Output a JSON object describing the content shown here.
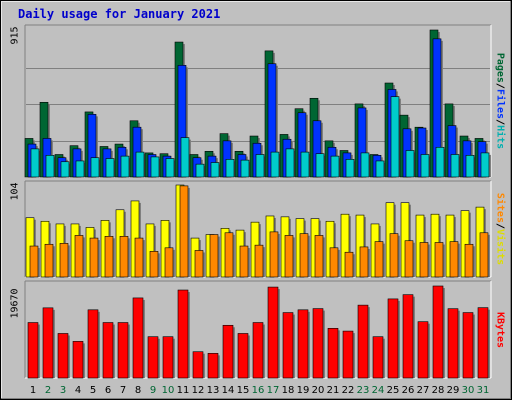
{
  "title": "Daily usage for January 2021",
  "colors": {
    "hits": "#00cccc",
    "files": "#0033ff",
    "pages": "#006633",
    "visits": "#ffff00",
    "sites": "#ff8800",
    "kbytes": "#ff0000",
    "panel_bg": "#c0c0c0",
    "weekend_label": "#006633",
    "weekday_label": "#000000"
  },
  "legend": {
    "pages": "Pages",
    "files": "Files",
    "hits": "Hits",
    "sites": "Sites",
    "visits": "Visits",
    "kbytes": "KBytes",
    "sep": "/"
  },
  "chart_data": [
    {
      "type": "bar",
      "name": "hits-files-pages",
      "max_label": "915",
      "ylim": [
        0,
        915
      ],
      "categories": [
        "1",
        "2",
        "3",
        "4",
        "5",
        "6",
        "7",
        "8",
        "9",
        "10",
        "11",
        "12",
        "13",
        "14",
        "15",
        "16",
        "17",
        "18",
        "19",
        "20",
        "21",
        "22",
        "23",
        "24",
        "25",
        "26",
        "27",
        "28",
        "29",
        "30",
        "31"
      ],
      "weekend": [
        2,
        3,
        9,
        10,
        16,
        17,
        23,
        24,
        30,
        31
      ],
      "series": [
        {
          "name": "Pages",
          "values": [
            240,
            465,
            140,
            195,
            405,
            190,
            205,
            350,
            150,
            145,
            840,
            140,
            160,
            270,
            160,
            255,
            785,
            265,
            425,
            490,
            225,
            165,
            455,
            140,
            585,
            385,
            310,
            915,
            455,
            255,
            240
          ]
        },
        {
          "name": "Files",
          "values": [
            205,
            240,
            120,
            175,
            390,
            175,
            185,
            310,
            140,
            130,
            695,
            120,
            130,
            225,
            140,
            210,
            705,
            235,
            400,
            350,
            185,
            150,
            430,
            135,
            545,
            300,
            305,
            860,
            320,
            225,
            220
          ]
        },
        {
          "name": "Hits",
          "values": [
            175,
            135,
            95,
            100,
            120,
            115,
            130,
            155,
            125,
            115,
            245,
            80,
            90,
            110,
            105,
            140,
            155,
            175,
            155,
            145,
            130,
            110,
            150,
            100,
            500,
            165,
            140,
            185,
            140,
            135,
            150
          ]
        }
      ]
    },
    {
      "type": "bar",
      "name": "visits-sites",
      "max_label": "104",
      "ylim": [
        0,
        104
      ],
      "categories": [
        "1",
        "2",
        "3",
        "4",
        "5",
        "6",
        "7",
        "8",
        "9",
        "10",
        "11",
        "12",
        "13",
        "14",
        "15",
        "16",
        "17",
        "18",
        "19",
        "20",
        "21",
        "22",
        "23",
        "24",
        "25",
        "26",
        "27",
        "28",
        "29",
        "30",
        "31"
      ],
      "series": [
        {
          "name": "Visits",
          "values": [
            67,
            63,
            60,
            60,
            56,
            64,
            76,
            86,
            60,
            64,
            104,
            44,
            48,
            55,
            53,
            62,
            69,
            68,
            66,
            66,
            63,
            71,
            70,
            60,
            84,
            84,
            70,
            71,
            70,
            75,
            79
          ]
        },
        {
          "name": "Sites",
          "values": [
            35,
            37,
            38,
            47,
            44,
            46,
            46,
            44,
            29,
            33,
            103,
            30,
            48,
            50,
            35,
            36,
            51,
            47,
            49,
            47,
            33,
            28,
            34,
            40,
            49,
            41,
            39,
            39,
            40,
            37,
            50
          ]
        }
      ]
    },
    {
      "type": "bar",
      "name": "kbytes",
      "max_label": "19670",
      "ylim": [
        0,
        19670
      ],
      "categories": [
        "1",
        "2",
        "3",
        "4",
        "5",
        "6",
        "7",
        "8",
        "9",
        "10",
        "11",
        "12",
        "13",
        "14",
        "15",
        "16",
        "17",
        "18",
        "19",
        "20",
        "21",
        "22",
        "23",
        "24",
        "25",
        "26",
        "27",
        "28",
        "29",
        "30",
        "31"
      ],
      "series": [
        {
          "name": "KBytes",
          "values": [
            11860,
            15000,
            9520,
            7830,
            14580,
            11860,
            11860,
            17120,
            8830,
            8830,
            18810,
            5620,
            5270,
            11270,
            9520,
            11860,
            19440,
            13990,
            14580,
            14840,
            10620,
            10030,
            15580,
            8830,
            16910,
            17820,
            12040,
            19670,
            14820,
            13990,
            15040
          ]
        }
      ]
    }
  ]
}
